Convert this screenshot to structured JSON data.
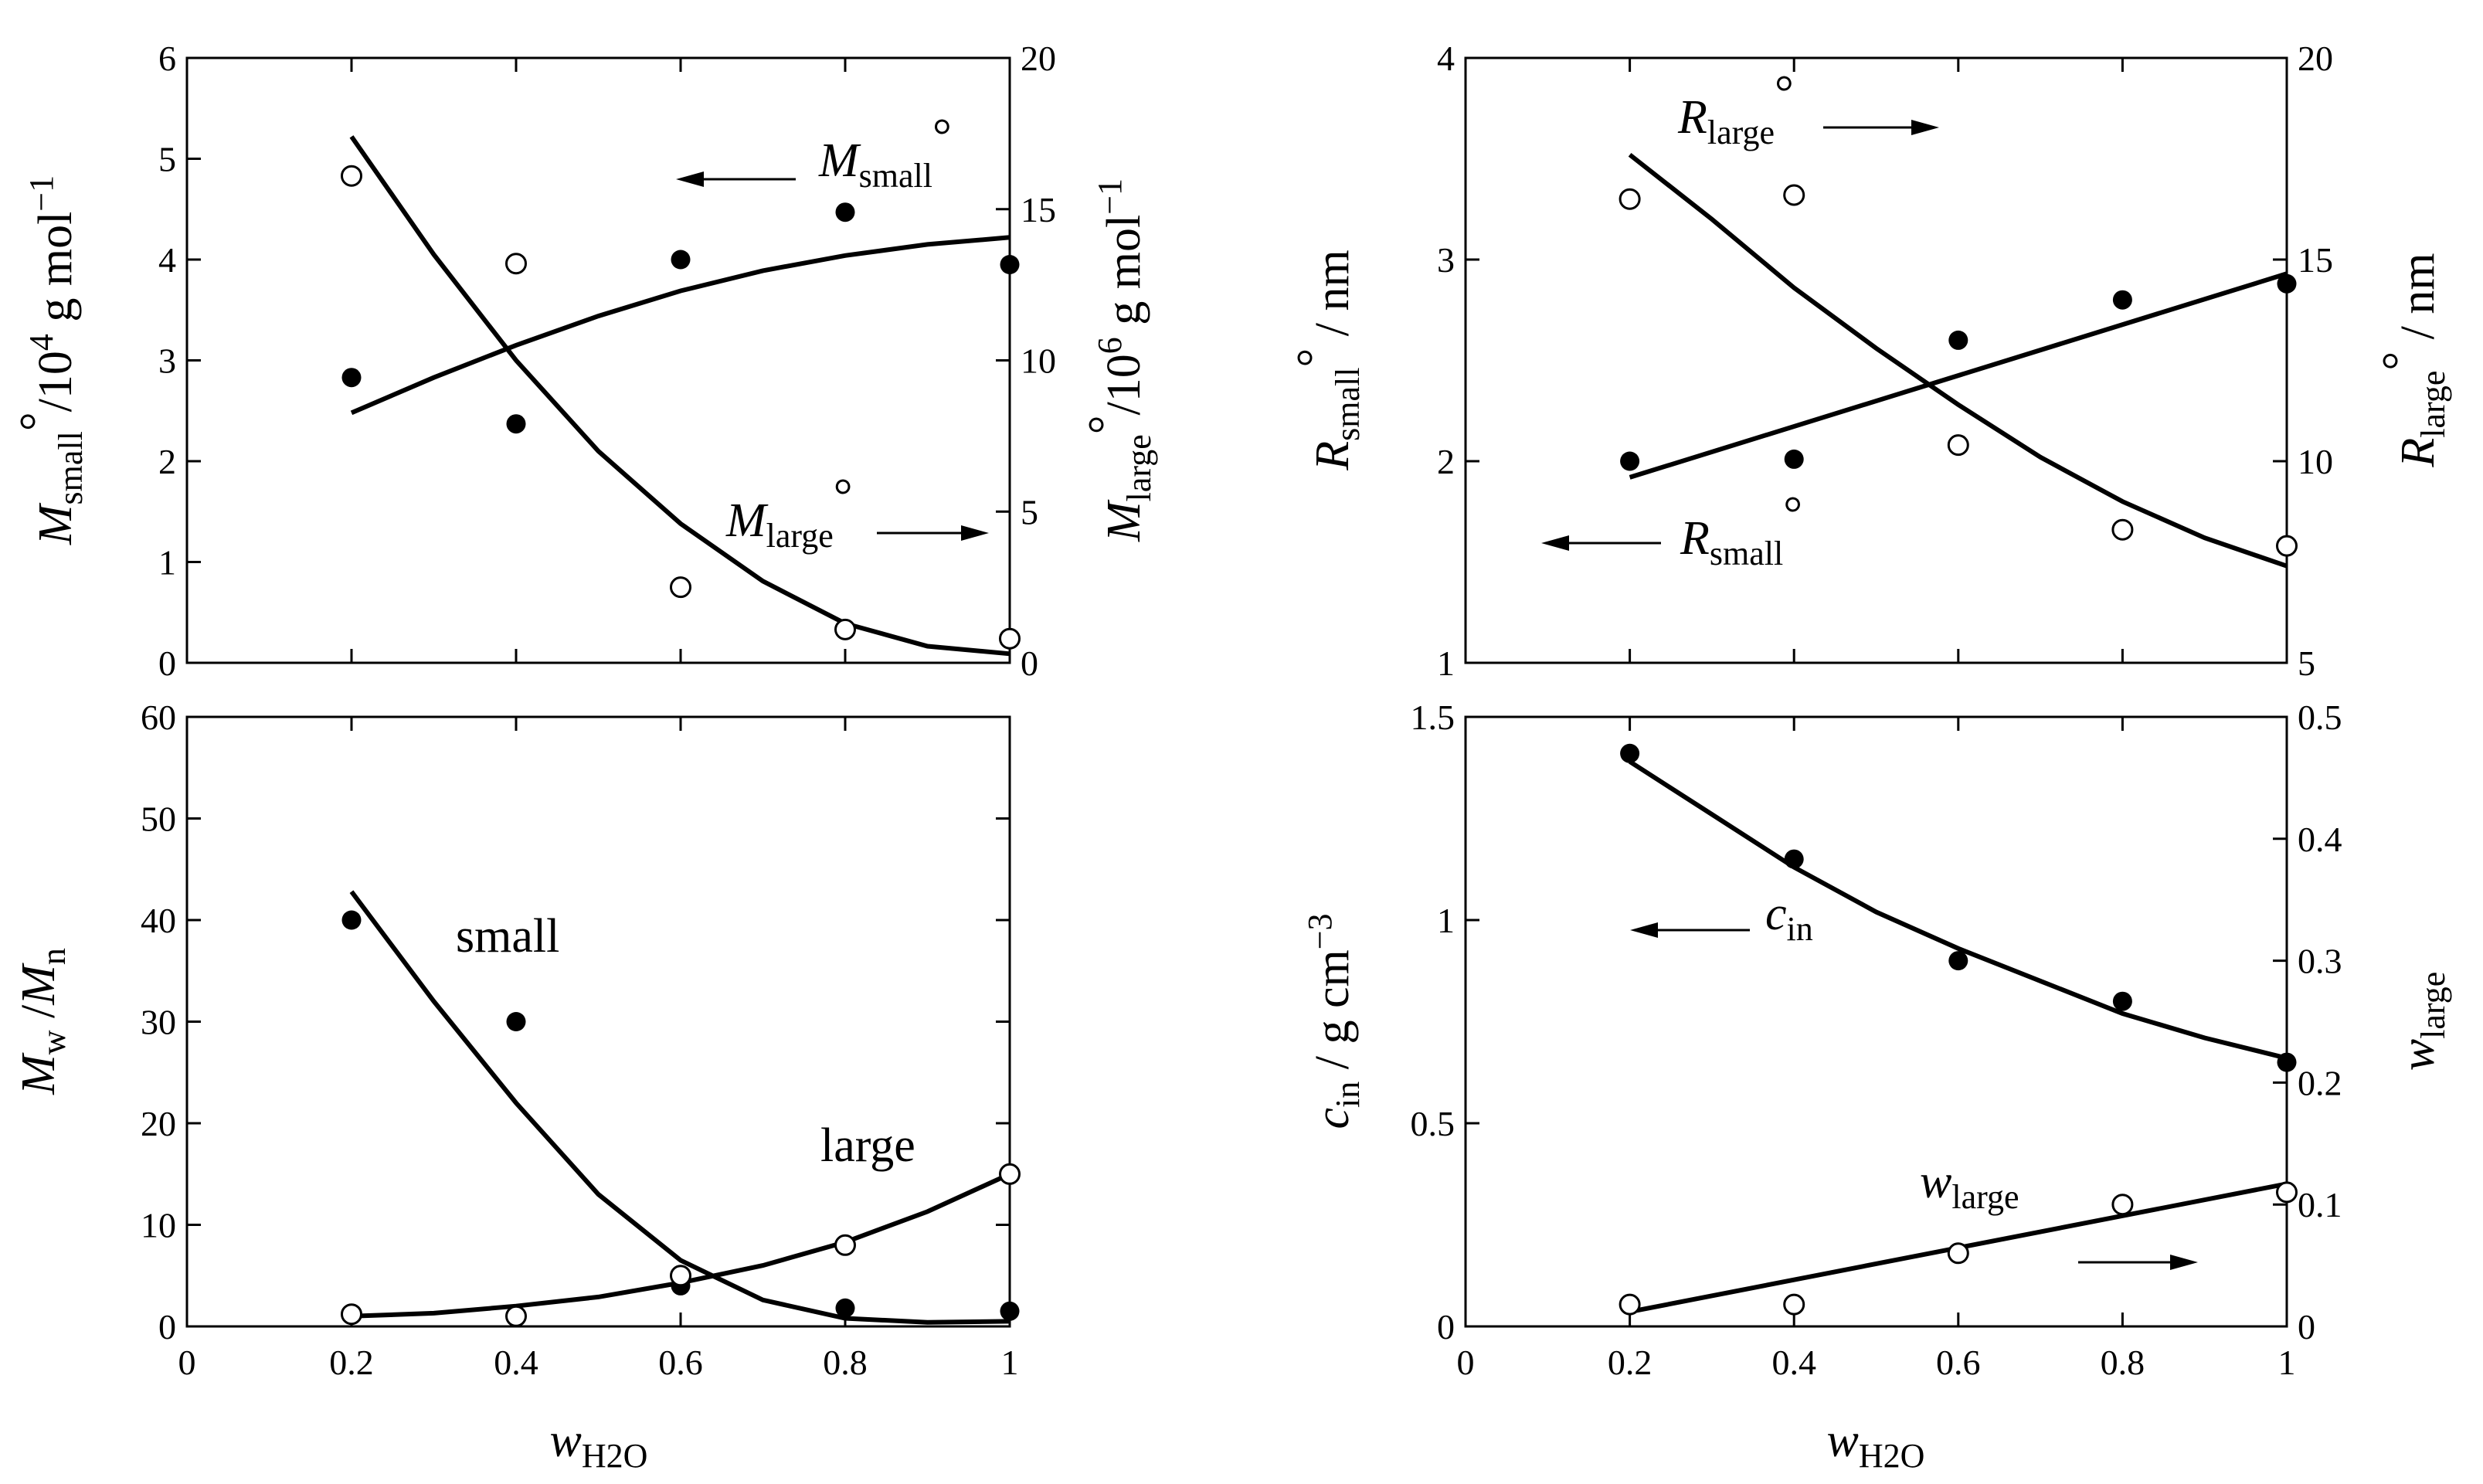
{
  "figure": {
    "xlabel_main": "w",
    "xlabel_sub": "H2O",
    "x_ticks": [
      "0",
      "0.2",
      "0.4",
      "0.6",
      "0.8",
      "1"
    ]
  },
  "chart_data": [
    {
      "id": "a",
      "type": "scatter",
      "xlim": [
        0,
        1
      ],
      "ylim_left": [
        0,
        6
      ],
      "ylim_right": [
        0,
        20
      ],
      "left_ticks": [
        "0",
        "1",
        "2",
        "3",
        "4",
        "5",
        "6"
      ],
      "right_ticks": [
        "0",
        "5",
        "10",
        "15",
        "20"
      ],
      "ylabel_left": {
        "main": "M",
        "sub": "small",
        "sup": "°",
        "unit": "/10",
        "unit_sup": "4",
        "unit_tail": " g mol",
        "unit_tail_sup": "−1"
      },
      "ylabel_right": {
        "main": "M",
        "sub": "large",
        "sup": "°",
        "unit": "/10",
        "unit_sup": "6",
        "unit_tail": " g mol",
        "unit_tail_sup": "−1"
      },
      "annotations": [
        {
          "main": "M",
          "sub": "small",
          "sup": "°"
        },
        {
          "main": "M",
          "sub": "large",
          "sup": "°"
        }
      ],
      "series": [
        {
          "name": "M_small°",
          "marker": "filled",
          "axis": "left",
          "x": [
            0.2,
            0.4,
            0.6,
            0.8,
            1.0
          ],
          "y": [
            2.83,
            2.37,
            4.0,
            4.47,
            3.95
          ]
        },
        {
          "name": "M_large°",
          "marker": "open",
          "axis": "right",
          "x": [
            0.2,
            0.4,
            0.6,
            0.8,
            1.0
          ],
          "y": [
            16.1,
            13.2,
            2.5,
            1.1,
            0.8
          ]
        }
      ],
      "fits": [
        {
          "name": "M_small° fit",
          "axis": "left",
          "x": [
            0.2,
            0.3,
            0.4,
            0.5,
            0.6,
            0.7,
            0.8,
            0.9,
            1.0
          ],
          "y": [
            2.48,
            2.83,
            3.15,
            3.44,
            3.69,
            3.89,
            4.04,
            4.15,
            4.22
          ]
        },
        {
          "name": "M_large° fit",
          "axis": "right",
          "x": [
            0.2,
            0.3,
            0.4,
            0.5,
            0.6,
            0.7,
            0.8,
            0.9,
            1.0
          ],
          "y": [
            17.4,
            13.5,
            10.0,
            7.0,
            4.6,
            2.7,
            1.3,
            0.55,
            0.3
          ]
        }
      ]
    },
    {
      "id": "b",
      "type": "scatter",
      "xlim": [
        0,
        1
      ],
      "ylim_left": [
        1,
        4
      ],
      "ylim_right": [
        5,
        20
      ],
      "left_ticks": [
        "1",
        "2",
        "3",
        "4"
      ],
      "right_ticks": [
        "5",
        "10",
        "15",
        "20"
      ],
      "ylabel_left": {
        "main": "R",
        "sub": "small",
        "sup": "°",
        "unit": " / nm"
      },
      "ylabel_right": {
        "main": "R",
        "sub": "large",
        "sup": "°",
        "unit": " / nm"
      },
      "annotations": [
        {
          "main": "R",
          "sub": "large",
          "sup": "°"
        },
        {
          "main": "R",
          "sub": "small",
          "sup": "°"
        }
      ],
      "series": [
        {
          "name": "R_small°",
          "marker": "filled",
          "axis": "left",
          "x": [
            0.2,
            0.4,
            0.6,
            0.8,
            1.0
          ],
          "y": [
            2.0,
            2.01,
            2.6,
            2.8,
            2.88
          ]
        },
        {
          "name": "R_large°",
          "marker": "open",
          "axis": "right",
          "x": [
            0.2,
            0.4,
            0.6,
            0.8,
            1.0
          ],
          "y": [
            16.5,
            16.6,
            10.4,
            8.3,
            7.9
          ]
        }
      ],
      "fits": [
        {
          "name": "R_small° fit",
          "axis": "left",
          "x": [
            0.2,
            1.0
          ],
          "y": [
            1.92,
            2.93
          ]
        },
        {
          "name": "R_large° fit",
          "axis": "right",
          "x": [
            0.2,
            0.3,
            0.4,
            0.5,
            0.6,
            0.7,
            0.8,
            0.9,
            1.0
          ],
          "y": [
            17.6,
            16.0,
            14.3,
            12.8,
            11.4,
            10.1,
            9.0,
            8.1,
            7.4
          ]
        }
      ]
    },
    {
      "id": "c",
      "type": "scatter",
      "xlim": [
        0,
        1
      ],
      "ylim_left": [
        0,
        60
      ],
      "left_ticks": [
        "0",
        "10",
        "20",
        "30",
        "40",
        "50",
        "60"
      ],
      "ylabel_left": {
        "main": "M",
        "sub": "w",
        "mid": " /",
        "main2": "M",
        "sub2": "n"
      },
      "annotations": [
        {
          "text": "small"
        },
        {
          "text": "large"
        }
      ],
      "series": [
        {
          "name": "small",
          "marker": "filled",
          "axis": "left",
          "x": [
            0.2,
            0.4,
            0.6,
            0.8,
            1.0
          ],
          "y": [
            40,
            30,
            4,
            1.8,
            1.5
          ]
        },
        {
          "name": "large",
          "marker": "open",
          "axis": "left",
          "x": [
            0.2,
            0.4,
            0.6,
            0.8,
            1.0
          ],
          "y": [
            1.2,
            1.0,
            5,
            8,
            15
          ]
        }
      ],
      "fits": [
        {
          "name": "small fit",
          "axis": "left",
          "x": [
            0.2,
            0.3,
            0.4,
            0.5,
            0.6,
            0.7,
            0.8,
            0.9,
            1.0
          ],
          "y": [
            42.8,
            32.0,
            22.0,
            13.0,
            6.5,
            2.6,
            0.8,
            0.4,
            0.5
          ]
        },
        {
          "name": "large fit",
          "axis": "left",
          "x": [
            0.2,
            0.3,
            0.4,
            0.5,
            0.6,
            0.7,
            0.8,
            0.9,
            1.0
          ],
          "y": [
            1.0,
            1.3,
            2.0,
            2.9,
            4.3,
            6.0,
            8.3,
            11.3,
            15.0
          ]
        }
      ]
    },
    {
      "id": "d",
      "type": "scatter",
      "xlim": [
        0,
        1
      ],
      "ylim_left": [
        0,
        1.5
      ],
      "ylim_right": [
        0,
        0.5
      ],
      "left_ticks": [
        "0",
        "0.5",
        "1",
        "1.5"
      ],
      "right_ticks": [
        "0",
        "0.1",
        "0.2",
        "0.3",
        "0.4",
        "0.5"
      ],
      "ylabel_left": {
        "main": "c",
        "sub": "in",
        "unit": " / g cm",
        "unit_sup": "−3"
      },
      "ylabel_right": {
        "main": "w",
        "sub": "large"
      },
      "annotations": [
        {
          "main": "c",
          "sub": "in"
        },
        {
          "main": "w",
          "sub": "large"
        }
      ],
      "series": [
        {
          "name": "c_in",
          "marker": "filled",
          "axis": "left",
          "x": [
            0.2,
            0.4,
            0.6,
            0.8,
            1.0
          ],
          "y": [
            1.41,
            1.15,
            0.9,
            0.8,
            0.65
          ]
        },
        {
          "name": "w_large",
          "marker": "open",
          "axis": "right",
          "x": [
            0.2,
            0.4,
            0.6,
            0.8,
            1.0
          ],
          "y": [
            0.018,
            0.018,
            0.06,
            0.1,
            0.11
          ]
        }
      ],
      "fits": [
        {
          "name": "c_in fit",
          "axis": "left",
          "x": [
            0.2,
            0.3,
            0.4,
            0.5,
            0.6,
            0.7,
            0.8,
            0.9,
            1.0
          ],
          "y": [
            1.39,
            1.26,
            1.13,
            1.02,
            0.93,
            0.85,
            0.77,
            0.71,
            0.66
          ]
        },
        {
          "name": "w_large fit",
          "axis": "right",
          "x": [
            0.2,
            1.0
          ],
          "y": [
            0.012,
            0.117
          ]
        }
      ]
    }
  ]
}
